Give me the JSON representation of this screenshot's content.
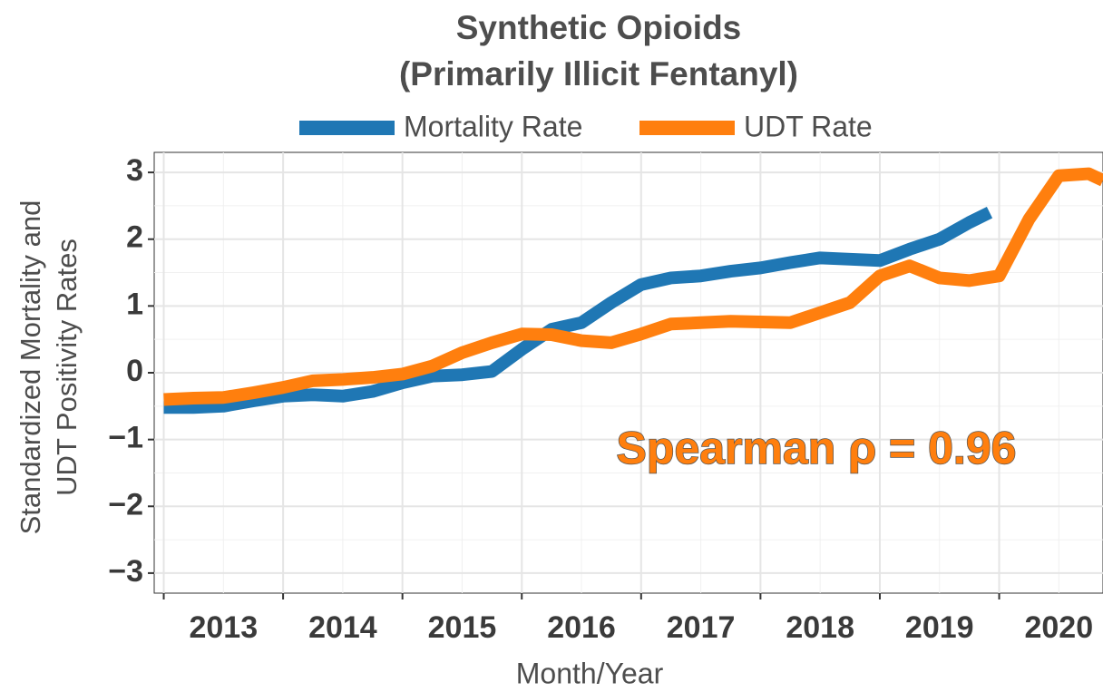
{
  "chart_data": {
    "type": "line",
    "title": [
      "Synthetic Opioids",
      "(Primarily Illicit Fentanyl)"
    ],
    "xlabel": "Month/Year",
    "ylabel": [
      "Standardized Mortality and",
      "UDT Positivity Rates"
    ],
    "annotation": "Spearman ρ = 0.96",
    "annotation_color": "#ff7f0e",
    "grid": true,
    "legend": "top",
    "xlim": [
      2012.92,
      2020.87
    ],
    "xticks": [
      2013,
      2014,
      2015,
      2016,
      2017,
      2018,
      2019,
      2020
    ],
    "ylim": [
      -3.3,
      3.3
    ],
    "yticks": [
      {
        "value": -3,
        "label": "−3"
      },
      {
        "value": -2,
        "label": "−2"
      },
      {
        "value": -1,
        "label": "−1"
      },
      0,
      1,
      2,
      3
    ],
    "series": [
      {
        "name": "Mortality Rate",
        "color": "#1f77b4",
        "x": [
          2013.0,
          2013.25,
          2013.5,
          2013.75,
          2014.0,
          2014.25,
          2014.5,
          2014.75,
          2015.0,
          2015.25,
          2015.5,
          2015.75,
          2016.0,
          2016.25,
          2016.5,
          2016.75,
          2017.0,
          2017.25,
          2017.5,
          2017.75,
          2018.0,
          2018.25,
          2018.5,
          2018.75,
          2019.0,
          2019.25,
          2019.5,
          2019.75,
          2019.92
        ],
        "values": [
          -0.52,
          -0.52,
          -0.5,
          -0.42,
          -0.35,
          -0.33,
          -0.35,
          -0.28,
          -0.15,
          -0.05,
          -0.03,
          0.02,
          0.35,
          0.65,
          0.75,
          1.05,
          1.32,
          1.42,
          1.45,
          1.52,
          1.57,
          1.65,
          1.72,
          1.7,
          1.68,
          1.85,
          2.0,
          2.25,
          2.4
        ]
      },
      {
        "name": "UDT Rate",
        "color": "#ff7f0e",
        "x": [
          2013.0,
          2013.25,
          2013.5,
          2013.75,
          2014.0,
          2014.25,
          2014.5,
          2014.75,
          2015.0,
          2015.25,
          2015.5,
          2015.75,
          2016.0,
          2016.25,
          2016.5,
          2016.75,
          2017.0,
          2017.25,
          2017.5,
          2017.75,
          2018.0,
          2018.25,
          2018.5,
          2018.75,
          2019.0,
          2019.25,
          2019.5,
          2019.75,
          2020.0,
          2020.25,
          2020.5,
          2020.75,
          2020.87
        ],
        "values": [
          -0.4,
          -0.38,
          -0.37,
          -0.3,
          -0.22,
          -0.12,
          -0.1,
          -0.07,
          -0.02,
          0.1,
          0.3,
          0.45,
          0.58,
          0.57,
          0.48,
          0.45,
          0.58,
          0.73,
          0.75,
          0.77,
          0.76,
          0.75,
          0.9,
          1.05,
          1.45,
          1.6,
          1.42,
          1.38,
          1.45,
          2.3,
          2.95,
          2.98,
          2.88
        ]
      }
    ]
  }
}
